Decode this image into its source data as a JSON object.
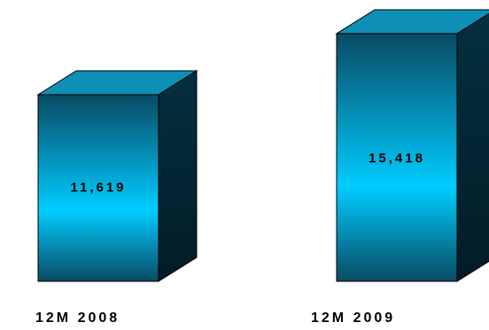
{
  "chart_data": {
    "type": "bar",
    "style": "3d-box",
    "categories": [
      "12M 2008",
      "12M 2009"
    ],
    "values": [
      11619,
      15418
    ],
    "value_labels": [
      "11,619",
      "15,418"
    ],
    "title": "",
    "xlabel": "",
    "ylabel": "",
    "grid": false,
    "legend": "none",
    "colors": {
      "front_bright": "#00ccff",
      "front_dark": "#0a4a63",
      "top": "#0e8fb5",
      "side": "#04303f",
      "outline": "#000000"
    }
  }
}
